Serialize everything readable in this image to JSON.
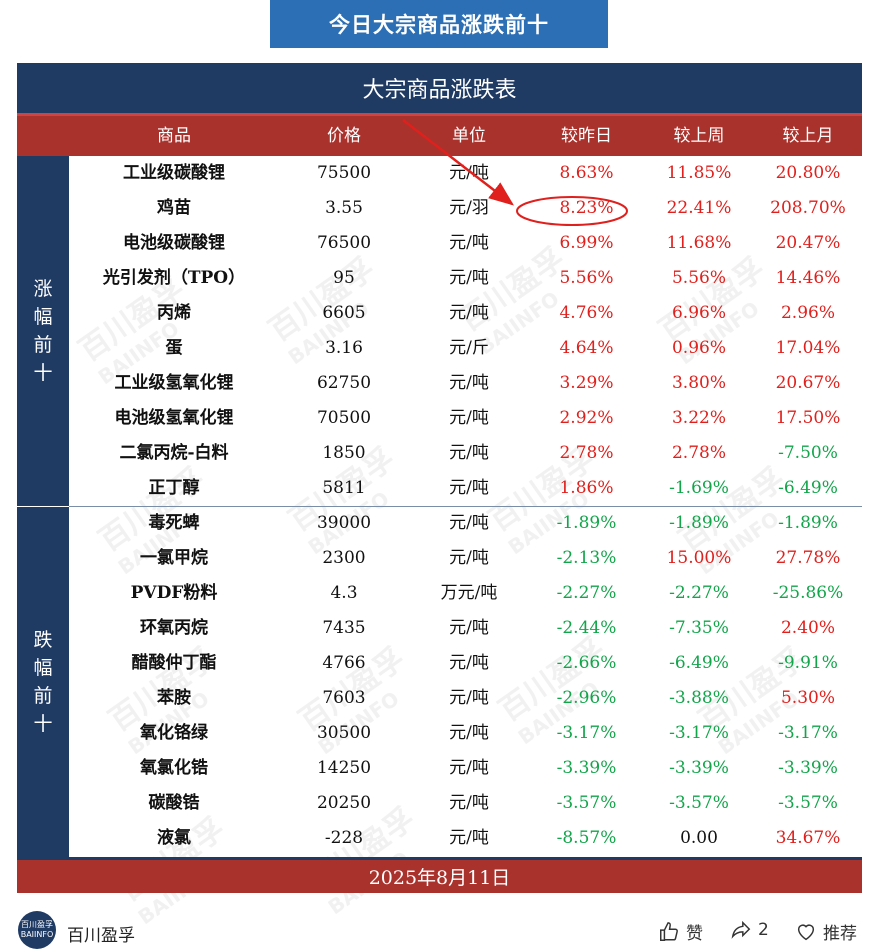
{
  "banner": {
    "title": "今日大宗商品涨跌前十"
  },
  "table": {
    "title": "大宗商品涨跌表",
    "headers": [
      "商品",
      "价格",
      "单位",
      "较昨日",
      "较上周",
      "较上月"
    ],
    "side_up": "涨幅前十",
    "side_down": "跌幅前十",
    "rows": [
      {
        "name": "工业级碳酸锂",
        "price": "75500",
        "unit": "元/吨",
        "d": "8.63%",
        "w": "11.85%",
        "m": "20.80%",
        "dc": "pos",
        "wc": "pos",
        "mc": "pos"
      },
      {
        "name": "鸡苗",
        "price": "3.55",
        "unit": "元/羽",
        "d": "8.23%",
        "w": "22.41%",
        "m": "208.70%",
        "dc": "pos",
        "wc": "pos",
        "mc": "pos"
      },
      {
        "name": "电池级碳酸锂",
        "price": "76500",
        "unit": "元/吨",
        "d": "6.99%",
        "w": "11.68%",
        "m": "20.47%",
        "dc": "pos",
        "wc": "pos",
        "mc": "pos"
      },
      {
        "name": "光引发剂（TPO）",
        "price": "95",
        "unit": "元/吨",
        "d": "5.56%",
        "w": "5.56%",
        "m": "14.46%",
        "dc": "pos",
        "wc": "pos",
        "mc": "pos"
      },
      {
        "name": "丙烯",
        "price": "6605",
        "unit": "元/吨",
        "d": "4.76%",
        "w": "6.96%",
        "m": "2.96%",
        "dc": "pos",
        "wc": "pos",
        "mc": "pos"
      },
      {
        "name": "蛋",
        "price": "3.16",
        "unit": "元/斤",
        "d": "4.64%",
        "w": "0.96%",
        "m": "17.04%",
        "dc": "pos",
        "wc": "pos",
        "mc": "pos"
      },
      {
        "name": "工业级氢氧化锂",
        "price": "62750",
        "unit": "元/吨",
        "d": "3.29%",
        "w": "3.80%",
        "m": "20.67%",
        "dc": "pos",
        "wc": "pos",
        "mc": "pos"
      },
      {
        "name": "电池级氢氧化锂",
        "price": "70500",
        "unit": "元/吨",
        "d": "2.92%",
        "w": "3.22%",
        "m": "17.50%",
        "dc": "pos",
        "wc": "pos",
        "mc": "pos"
      },
      {
        "name": "二氯丙烷-白料",
        "price": "1850",
        "unit": "元/吨",
        "d": "2.78%",
        "w": "2.78%",
        "m": "-7.50%",
        "dc": "pos",
        "wc": "pos",
        "mc": "neg"
      },
      {
        "name": "正丁醇",
        "price": "5811",
        "unit": "元/吨",
        "d": "1.86%",
        "w": "-1.69%",
        "m": "-6.49%",
        "dc": "pos",
        "wc": "neg",
        "mc": "neg"
      },
      {
        "name": "毒死蜱",
        "price": "39000",
        "unit": "元/吨",
        "d": "-1.89%",
        "w": "-1.89%",
        "m": "-1.89%",
        "dc": "neg",
        "wc": "neg",
        "mc": "neg"
      },
      {
        "name": "一氯甲烷",
        "price": "2300",
        "unit": "元/吨",
        "d": "-2.13%",
        "w": "15.00%",
        "m": "27.78%",
        "dc": "neg",
        "wc": "pos",
        "mc": "pos"
      },
      {
        "name": "PVDF粉料",
        "price": "4.3",
        "unit": "万元/吨",
        "d": "-2.27%",
        "w": "-2.27%",
        "m": "-25.86%",
        "dc": "neg",
        "wc": "neg",
        "mc": "neg"
      },
      {
        "name": "环氧丙烷",
        "price": "7435",
        "unit": "元/吨",
        "d": "-2.44%",
        "w": "-7.35%",
        "m": "2.40%",
        "dc": "neg",
        "wc": "neg",
        "mc": "pos"
      },
      {
        "name": "醋酸仲丁酯",
        "price": "4766",
        "unit": "元/吨",
        "d": "-2.66%",
        "w": "-6.49%",
        "m": "-9.91%",
        "dc": "neg",
        "wc": "neg",
        "mc": "neg"
      },
      {
        "name": "苯胺",
        "price": "7603",
        "unit": "元/吨",
        "d": "-2.96%",
        "w": "-3.88%",
        "m": "5.30%",
        "dc": "neg",
        "wc": "neg",
        "mc": "pos"
      },
      {
        "name": "氧化铬绿",
        "price": "30500",
        "unit": "元/吨",
        "d": "-3.17%",
        "w": "-3.17%",
        "m": "-3.17%",
        "dc": "neg",
        "wc": "neg",
        "mc": "neg"
      },
      {
        "name": "氧氯化锆",
        "price": "14250",
        "unit": "元/吨",
        "d": "-3.39%",
        "w": "-3.39%",
        "m": "-3.39%",
        "dc": "neg",
        "wc": "neg",
        "mc": "neg"
      },
      {
        "name": "碳酸锆",
        "price": "20250",
        "unit": "元/吨",
        "d": "-3.57%",
        "w": "-3.57%",
        "m": "-3.57%",
        "dc": "neg",
        "wc": "neg",
        "mc": "neg"
      },
      {
        "name": "液氯",
        "price": "-228",
        "unit": "元/吨",
        "d": "-8.57%",
        "w": "0.00",
        "m": "34.67%",
        "dc": "neg",
        "wc": "zero",
        "mc": "pos"
      }
    ],
    "date": "2025年8月11日"
  },
  "watermark": {
    "cn": "百川盈孚",
    "en": "BAIINFO"
  },
  "footer": {
    "avatar_cn": "百川盈孚",
    "avatar_en": "BAIINFO",
    "brand": "百川盈孚",
    "like_label": "赞",
    "share_count": "2",
    "recommend_label": "推荐"
  },
  "colors": {
    "navy": "#1f3a63",
    "red_header": "#a9322d",
    "up": "#e0201c",
    "down": "#12a54a",
    "banner": "#2c6fb5"
  }
}
